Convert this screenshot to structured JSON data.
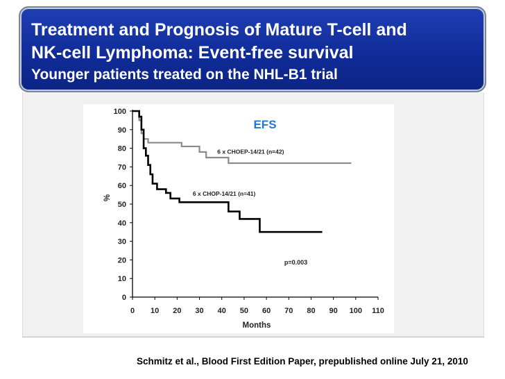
{
  "slide": {
    "title_line1": "Treatment and Prognosis of Mature T-cell and",
    "title_line2": "NK-cell Lymphoma: Event-free survival",
    "subtitle": "Younger patients treated on the NHL-B1 trial",
    "citation": "Schmitz et al., Blood First Edition Paper, prepublished online July 21, 2010",
    "accent_color": "#102c99"
  },
  "chart_data": {
    "type": "line",
    "title": "EFS",
    "xlabel": "Months",
    "ylabel": "%",
    "xlim": [
      0,
      110
    ],
    "ylim": [
      0,
      100
    ],
    "x_ticks": [
      0,
      10,
      20,
      30,
      40,
      50,
      60,
      70,
      80,
      90,
      100,
      110
    ],
    "y_ticks": [
      0,
      10,
      20,
      30,
      40,
      50,
      60,
      70,
      80,
      90,
      100
    ],
    "grid": false,
    "annotation": "p=0.003",
    "series": [
      {
        "name": "6 x CHOEP-14/21 (n=42)",
        "color": "#8a8a8a",
        "step": true,
        "points": [
          [
            0,
            100
          ],
          [
            2,
            100
          ],
          [
            3,
            95
          ],
          [
            4,
            88
          ],
          [
            5,
            85
          ],
          [
            7,
            83
          ],
          [
            22,
            83
          ],
          [
            22,
            81
          ],
          [
            30,
            81
          ],
          [
            30,
            78
          ],
          [
            33,
            78
          ],
          [
            33,
            75
          ],
          [
            43,
            75
          ],
          [
            43,
            72
          ],
          [
            98,
            72
          ]
        ]
      },
      {
        "name": "6 x CHOP-14/21 (n=41)",
        "color": "#000000",
        "step": true,
        "points": [
          [
            0,
            100
          ],
          [
            2,
            100
          ],
          [
            3,
            97
          ],
          [
            4,
            90
          ],
          [
            5,
            80
          ],
          [
            6,
            76
          ],
          [
            7,
            71
          ],
          [
            8,
            66
          ],
          [
            9,
            61
          ],
          [
            11,
            58
          ],
          [
            15,
            56
          ],
          [
            17,
            53
          ],
          [
            21,
            51
          ],
          [
            43,
            51
          ],
          [
            43,
            46
          ],
          [
            48,
            46
          ],
          [
            48,
            42
          ],
          [
            57,
            42
          ],
          [
            57,
            35
          ],
          [
            85,
            35
          ]
        ]
      }
    ]
  }
}
